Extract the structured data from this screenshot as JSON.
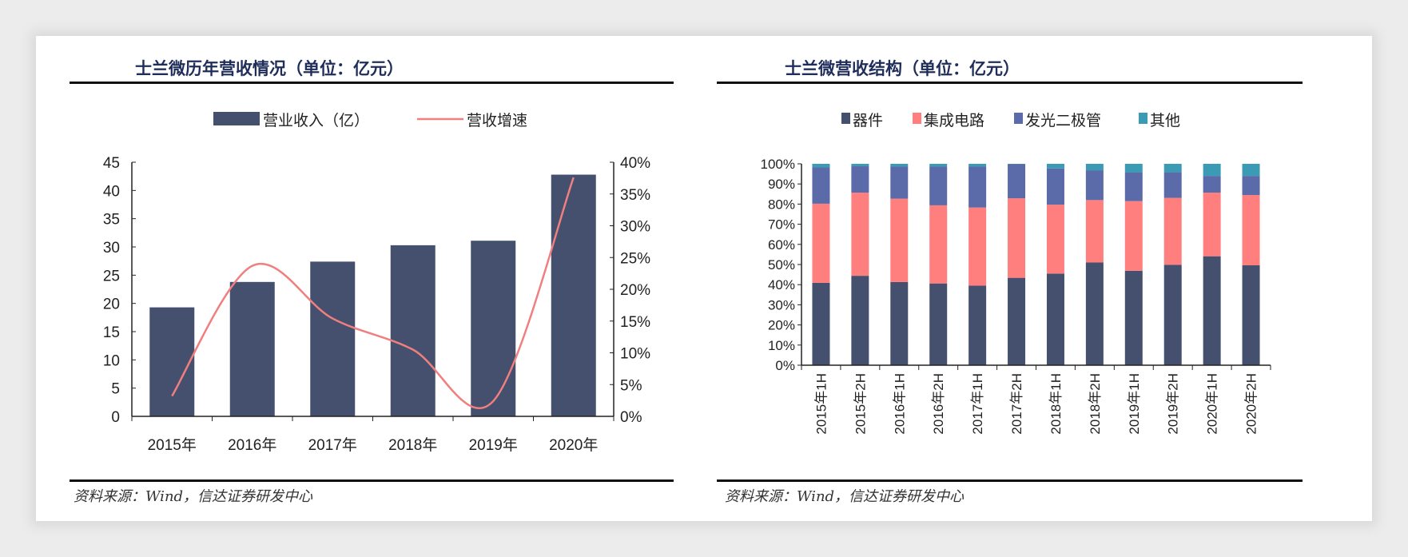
{
  "colors": {
    "bar": "#44506e",
    "line": "#f07f7f",
    "devices": "#44506e",
    "ic": "#ff7f7f",
    "led": "#5b6aa8",
    "other": "#3b9bb5"
  },
  "left": {
    "title": "士兰微历年营收情况（单位：亿元）",
    "source": "资料来源：Wind，信达证券研发中心"
  },
  "right": {
    "title": "士兰微营收结构（单位：亿元）",
    "source": "资料来源：Wind，信达证券研发中心"
  },
  "chart_data": [
    {
      "type": "bar+line",
      "categories": [
        "2015年",
        "2016年",
        "2017年",
        "2018年",
        "2019年",
        "2020年"
      ],
      "series": [
        {
          "name": "营业收入（亿）",
          "type": "bar",
          "axis": "left",
          "values": [
            19.3,
            23.8,
            27.4,
            30.3,
            31.1,
            42.8
          ]
        },
        {
          "name": "营收增速",
          "type": "line",
          "axis": "right",
          "values": [
            3.2,
            23.7,
            15.4,
            10.5,
            2.4,
            37.6
          ]
        }
      ],
      "ylim": [
        0,
        45
      ],
      "yticks": [
        "0",
        "5",
        "10",
        "15",
        "20",
        "25",
        "30",
        "35",
        "40",
        "45"
      ],
      "y2lim": [
        0,
        40
      ],
      "y2ticks": [
        "0%",
        "5%",
        "10%",
        "15%",
        "20%",
        "25%",
        "30%",
        "35%",
        "40%"
      ],
      "legend": "top",
      "grid": false
    },
    {
      "type": "stacked-bar-100",
      "categories": [
        "2015年1H",
        "2015年2H",
        "2016年1H",
        "2016年2H",
        "2017年1H",
        "2017年2H",
        "2018年1H",
        "2018年2H",
        "2019年1H",
        "2019年2H",
        "2020年1H",
        "2020年2H"
      ],
      "series": [
        {
          "name": "器件",
          "values": [
            40.9,
            44.4,
            41.3,
            40.6,
            39.5,
            43.4,
            45.5,
            51.0,
            46.9,
            49.9,
            54.1,
            49.6
          ]
        },
        {
          "name": "集成电路",
          "values": [
            39.3,
            41.3,
            41.4,
            38.8,
            38.8,
            39.5,
            34.2,
            31.0,
            34.6,
            33.2,
            31.6,
            34.9
          ]
        },
        {
          "name": "发光二极管",
          "values": [
            18.0,
            13.1,
            15.9,
            19.2,
            20.3,
            16.9,
            18.0,
            14.8,
            14.3,
            12.7,
            8.3,
            9.5
          ]
        },
        {
          "name": "其他",
          "values": [
            1.8,
            1.2,
            1.4,
            1.4,
            1.4,
            0.2,
            2.3,
            3.2,
            4.2,
            4.2,
            6.0,
            6.0
          ]
        }
      ],
      "ylim": [
        0,
        100
      ],
      "yticks": [
        "0%",
        "10%",
        "20%",
        "30%",
        "40%",
        "50%",
        "60%",
        "70%",
        "80%",
        "90%",
        "100%"
      ],
      "legend": "top",
      "grid": false
    }
  ]
}
